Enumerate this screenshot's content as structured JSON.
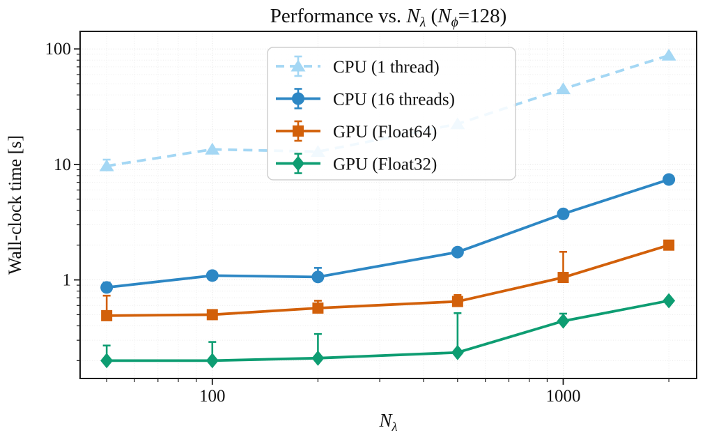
{
  "figure": {
    "background": "#ffffff"
  },
  "title_segments": [
    {
      "t": "Performance vs. "
    },
    {
      "t": "N",
      "style": "italic"
    },
    {
      "t": "λ",
      "style": "subitalic"
    },
    {
      "t": " ("
    },
    {
      "t": "N",
      "style": "italic"
    },
    {
      "t": "ϕ",
      "style": "subitalic"
    },
    {
      "t": "=128)"
    }
  ],
  "axes": {
    "xlabel_segments": [
      {
        "t": "N",
        "style": "italic"
      },
      {
        "t": "λ",
        "style": "subitalic"
      }
    ],
    "ylabel": "Wall-clock time [s]",
    "xscale": "log",
    "yscale": "log",
    "xlim": [
      42,
      2400
    ],
    "ylim": [
      0.14,
      142
    ],
    "x_major_ticks": [
      {
        "v": 100,
        "label": "100"
      },
      {
        "v": 1000,
        "label": "1000"
      }
    ],
    "x_minor_ticks": [
      50,
      60,
      70,
      80,
      90,
      200,
      300,
      400,
      500,
      600,
      700,
      800,
      900,
      2000
    ],
    "y_major_ticks": [
      {
        "v": 1,
        "label": "1"
      },
      {
        "v": 10,
        "label": "10"
      },
      {
        "v": 100,
        "label": "100"
      }
    ],
    "y_minor_ticks": [
      0.2,
      0.3,
      0.4,
      0.5,
      0.6,
      0.7,
      0.8,
      0.9,
      2,
      3,
      4,
      5,
      6,
      7,
      8,
      9,
      20,
      30,
      40,
      50,
      60,
      70,
      80,
      90
    ],
    "grid": true,
    "grid_minor_color": "#ececec",
    "grid_major_color": "#e2e2e2",
    "spine_color": "#1c1c1c"
  },
  "chart_data": {
    "type": "line",
    "title": "Performance vs. N_λ (N_ϕ=128)",
    "xlabel": "N_λ",
    "ylabel": "Wall-clock time [s]",
    "xscale": "log",
    "yscale": "log",
    "xlim": [
      42,
      2400
    ],
    "ylim": [
      0.14,
      142
    ],
    "grid": true,
    "legend_position": "upper left",
    "x": [
      50,
      100,
      200,
      500,
      1000,
      2000
    ],
    "series": [
      {
        "name": "CPU (1 thread)",
        "color": "#a4d7f4",
        "linestyle": "dashed",
        "marker": "triangle",
        "values": [
          9.7,
          13.5,
          12.9,
          22.4,
          45,
          88
        ],
        "err_up": [
          1.3,
          0,
          0,
          0,
          0,
          0
        ]
      },
      {
        "name": "CPU (16 threads)",
        "color": "#2d87c4",
        "linestyle": "solid",
        "marker": "circle",
        "values": [
          0.86,
          1.09,
          1.06,
          1.74,
          3.73,
          7.4
        ],
        "err_up": [
          0.09,
          0,
          0.21,
          0,
          0,
          0
        ]
      },
      {
        "name": "GPU (Float64)",
        "color": "#d2600a",
        "linestyle": "solid",
        "marker": "square",
        "values": [
          0.49,
          0.5,
          0.57,
          0.65,
          1.05,
          2.0
        ],
        "err_up": [
          0.24,
          0,
          0.09,
          0.09,
          0.7,
          0
        ]
      },
      {
        "name": "GPU (Float32)",
        "color": "#0e9d72",
        "linestyle": "solid",
        "marker": "diamond",
        "values": [
          0.2,
          0.2,
          0.21,
          0.235,
          0.44,
          0.66
        ],
        "err_up": [
          0.07,
          0.09,
          0.13,
          0.28,
          0.07,
          0
        ]
      }
    ]
  }
}
